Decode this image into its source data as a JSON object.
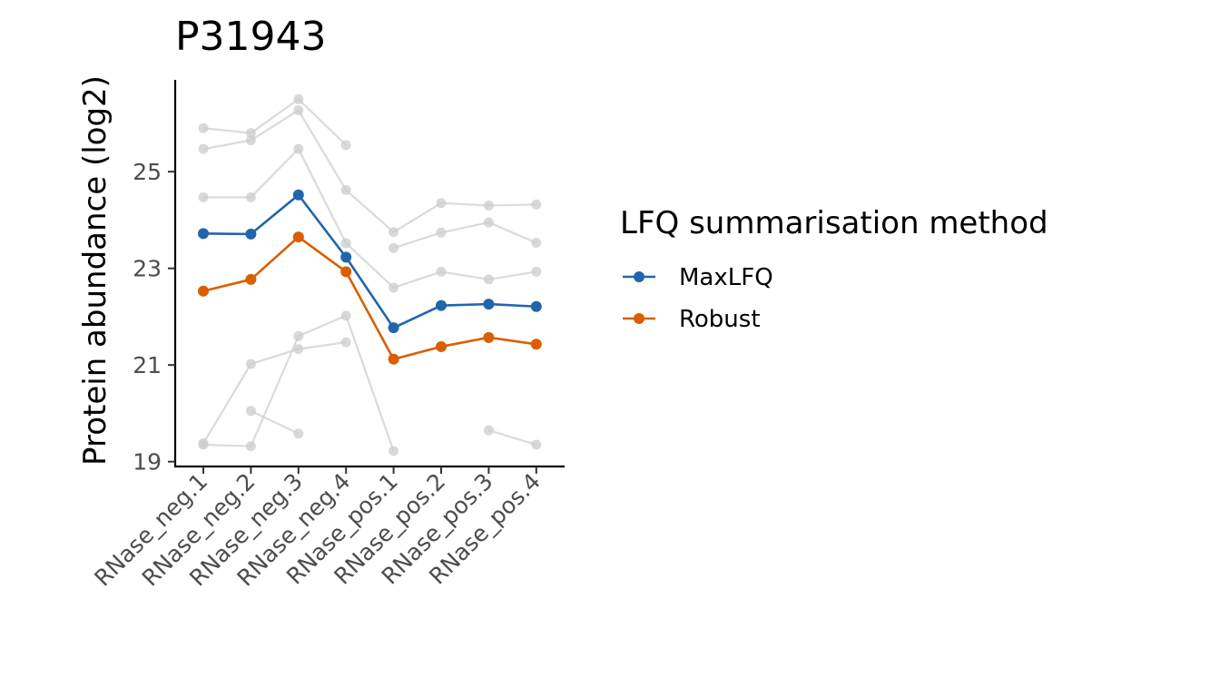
{
  "chart_data": {
    "type": "line",
    "title": "P31943",
    "xlabel": "",
    "ylabel": "Protein abundance (log2)",
    "categories": [
      "RNase_neg.1",
      "RNase_neg.2",
      "RNase_neg.3",
      "RNase_neg.4",
      "RNase_pos.1",
      "RNase_pos.2",
      "RNase_pos.3",
      "RNase_pos.4"
    ],
    "yticks": [
      19,
      21,
      23,
      25
    ],
    "ylim": [
      18.9,
      26.9
    ],
    "grid": false,
    "legend": {
      "title": "LFQ summarisation method",
      "position": "right"
    },
    "series": [
      {
        "name": "MaxLFQ",
        "color": "#2166ac",
        "values": [
          23.72,
          23.71,
          24.52,
          23.23,
          21.77,
          22.23,
          22.26,
          22.21
        ]
      },
      {
        "name": "Robust",
        "color": "#d95f02",
        "values": [
          22.53,
          22.77,
          23.65,
          22.93,
          21.12,
          21.38,
          21.57,
          21.43
        ]
      }
    ],
    "background_peptides": {
      "color": "#cccccc",
      "lines": [
        [
          25.9,
          25.8,
          26.5,
          25.55,
          null,
          null,
          null,
          null
        ],
        [
          25.47,
          25.65,
          26.27,
          24.62,
          23.75,
          24.35,
          24.3,
          24.32
        ],
        [
          24.47,
          24.47,
          25.47,
          23.52,
          22.6,
          22.93,
          22.77,
          22.93
        ],
        [
          null,
          null,
          null,
          null,
          23.42,
          23.74,
          23.95,
          23.53
        ],
        [
          19.38,
          21.02,
          21.33,
          21.47,
          null,
          null,
          null,
          null
        ],
        [
          19.35,
          19.32,
          21.6,
          22.02,
          19.22,
          null,
          null,
          null
        ],
        [
          null,
          20.05,
          19.58,
          null,
          null,
          null,
          19.65,
          19.35
        ]
      ]
    }
  }
}
